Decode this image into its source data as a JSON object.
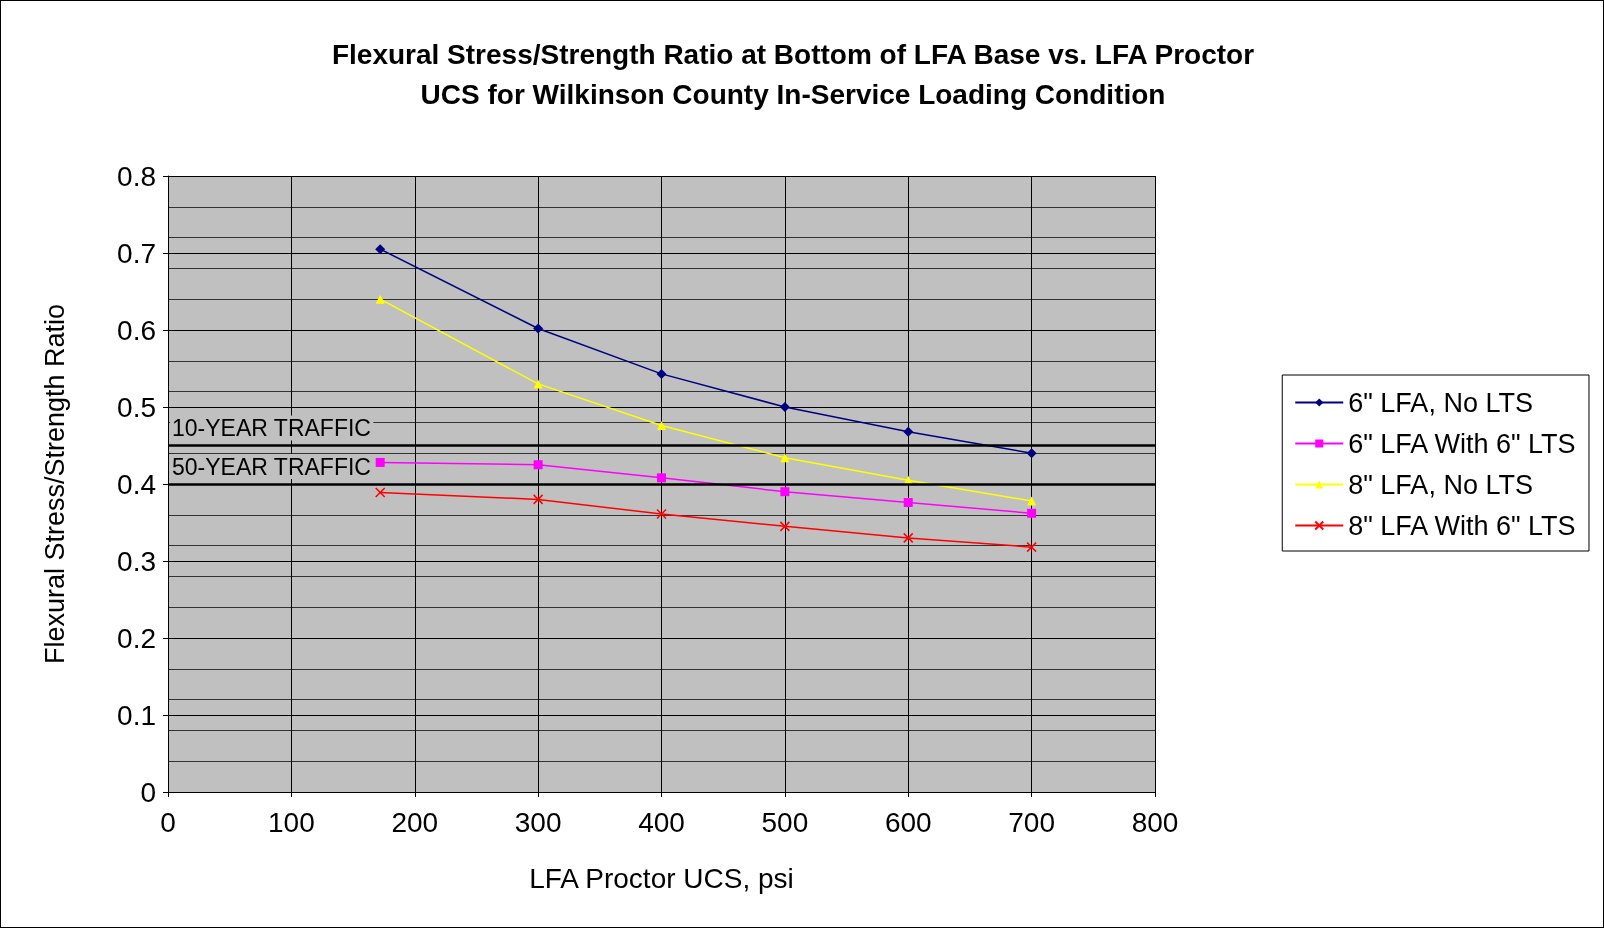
{
  "chart_data": {
    "type": "line",
    "title": "Flexural Stress/Strength Ratio at Bottom of LFA Base vs. LFA Proctor\nUCS for Wilkinson County In-Service Loading Condition",
    "xlabel": "LFA Proctor UCS, psi",
    "ylabel": "Flexural Stress/Strength Ratio",
    "x": [
      172,
      300,
      400,
      500,
      600,
      700
    ],
    "series": [
      {
        "name": "6\" LFA, No LTS",
        "color": "#000080",
        "marker": "diamond",
        "values": [
          0.705,
          0.602,
          0.543,
          0.5,
          0.468,
          0.44
        ]
      },
      {
        "name": "6\" LFA With 6\" LTS",
        "color": "#ff00ff",
        "marker": "square",
        "values": [
          0.428,
          0.425,
          0.408,
          0.39,
          0.376,
          0.362
        ]
      },
      {
        "name": "8\" LFA, No LTS",
        "color": "#ffff00",
        "marker": "triangle",
        "values": [
          0.64,
          0.53,
          0.476,
          0.434,
          0.405,
          0.378
        ]
      },
      {
        "name": "8\" LFA With 6\" LTS",
        "color": "#ff0000",
        "marker": "cross",
        "values": [
          0.389,
          0.38,
          0.361,
          0.345,
          0.33,
          0.318
        ]
      }
    ],
    "xlim": [
      0,
      800
    ],
    "xticks": [
      0,
      100,
      200,
      300,
      400,
      500,
      600,
      700,
      800
    ],
    "ylim": [
      0,
      0.8
    ],
    "yticks": [
      0,
      0.1,
      0.2,
      0.3,
      0.4,
      0.5,
      0.6,
      0.7,
      0.8
    ],
    "ref_lines": [
      {
        "axis": "y",
        "value": 0.453,
        "label": "10-YEAR TRAFFIC",
        "color": "#000000"
      },
      {
        "axis": "y",
        "value": 0.402,
        "label": "50-YEAR TRAFFIC",
        "color": "#000000"
      }
    ],
    "grid": true,
    "legend": "right",
    "line_style": "solid"
  }
}
